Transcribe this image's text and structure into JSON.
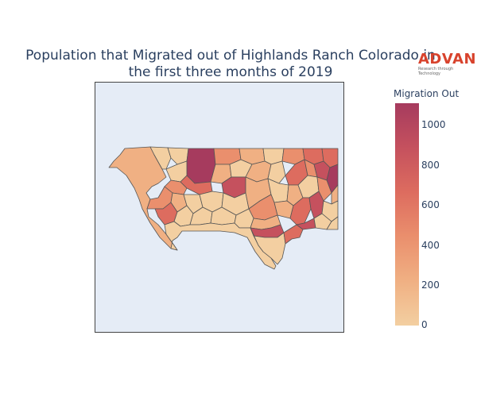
{
  "title_line1": "Population that Migrated out of Highlands Ranch Colorado in",
  "title_line2": "the first three months of 2019",
  "logo": {
    "word": "ADVAN",
    "tagline": "Research through Technology",
    "color": "#d8432d"
  },
  "colorbar": {
    "title": "Migration Out",
    "ticks": [
      "1000",
      "800",
      "600",
      "400",
      "200",
      "0"
    ],
    "range": [
      0,
      1100
    ],
    "colorscale": [
      "#f3cfa1",
      "#f0b083",
      "#ea8f6d",
      "#dd6c5f",
      "#c5515e",
      "#a63b5e"
    ]
  },
  "map": {
    "background": "#e5ecf6",
    "border": "#444444"
  }
}
